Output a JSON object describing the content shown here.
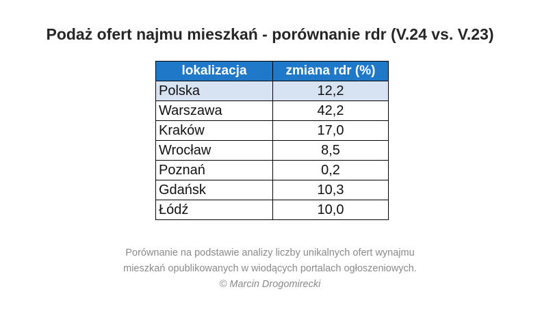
{
  "title": "Podaż ofert najmu mieszkań - porównanie rdr (V.24 vs. V.23)",
  "chart_data": {
    "type": "table",
    "columns": [
      "lokalizacja",
      "zmiana rdr (%)"
    ],
    "rows": [
      {
        "location": "Polska",
        "value": "12,2",
        "highlight": true
      },
      {
        "location": "Warszawa",
        "value": "42,2"
      },
      {
        "location": "Kraków",
        "value": "17,0"
      },
      {
        "location": "Wrocław",
        "value": "8,5"
      },
      {
        "location": "Poznań",
        "value": "0,2"
      },
      {
        "location": "Gdańsk",
        "value": "10,3"
      },
      {
        "location": "Łódź",
        "value": "10,0"
      }
    ]
  },
  "footnote": {
    "line1": "Porównanie na podstawie analizy liczby unikalnych ofert wynajmu",
    "line2": "mieszkań opublikowanych w wiodących portalach ogłoszeniowych.",
    "credit": "© Marcin Drogomirecki"
  },
  "colors": {
    "header_bg": "#1f78c8",
    "highlight_row": "#d7e3f2"
  }
}
